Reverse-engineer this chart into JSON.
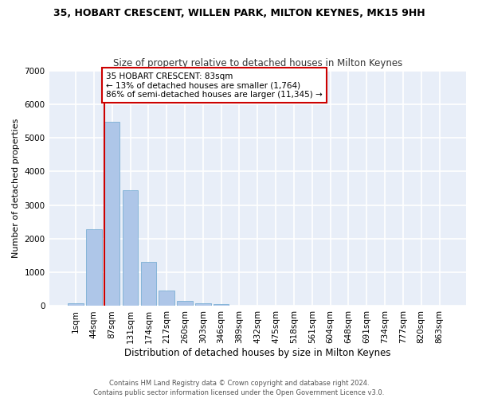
{
  "title": "35, HOBART CRESCENT, WILLEN PARK, MILTON KEYNES, MK15 9HH",
  "subtitle": "Size of property relative to detached houses in Milton Keynes",
  "xlabel": "Distribution of detached houses by size in Milton Keynes",
  "ylabel": "Number of detached properties",
  "bar_color": "#aec6e8",
  "bar_edge_color": "#7bafd4",
  "background_color": "#e8eef8",
  "grid_color": "#ffffff",
  "categories": [
    "1sqm",
    "44sqm",
    "87sqm",
    "131sqm",
    "174sqm",
    "217sqm",
    "260sqm",
    "303sqm",
    "346sqm",
    "389sqm",
    "432sqm",
    "475sqm",
    "518sqm",
    "561sqm",
    "604sqm",
    "648sqm",
    "691sqm",
    "734sqm",
    "777sqm",
    "820sqm",
    "863sqm"
  ],
  "values": [
    80,
    2280,
    5470,
    3430,
    1310,
    470,
    160,
    90,
    65,
    0,
    0,
    0,
    0,
    0,
    0,
    0,
    0,
    0,
    0,
    0,
    0
  ],
  "ylim": [
    0,
    7000
  ],
  "yticks": [
    0,
    1000,
    2000,
    3000,
    4000,
    5000,
    6000,
    7000
  ],
  "annotation_text": "35 HOBART CRESCENT: 83sqm\n← 13% of detached houses are smaller (1,764)\n86% of semi-detached houses are larger (11,345) →",
  "annotation_box_color": "#ffffff",
  "annotation_box_edge": "#cc0000",
  "vline_color": "#cc0000",
  "footer": "Contains HM Land Registry data © Crown copyright and database right 2024.\nContains public sector information licensed under the Open Government Licence v3.0.",
  "title_fontsize": 9,
  "subtitle_fontsize": 8.5,
  "xlabel_fontsize": 8.5,
  "ylabel_fontsize": 8,
  "tick_fontsize": 7.5,
  "annotation_fontsize": 7.5,
  "footer_fontsize": 6
}
